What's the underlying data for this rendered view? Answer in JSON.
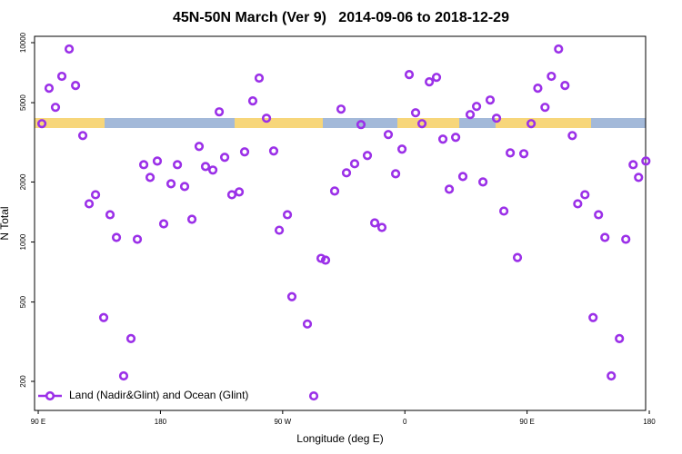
{
  "chart_data": {
    "type": "scatter",
    "title": "45N-50N March (Ver 9)   2014-09-06 to 2018-12-29",
    "xlabel": "Longitude (deg E)",
    "ylabel": "N Total",
    "log_y": true,
    "legend": "bottom-left",
    "xlim": [
      87.3,
      537.3
    ],
    "xticks": [
      {
        "value": 90,
        "label": "90 E"
      },
      {
        "value": 180,
        "label": "180"
      },
      {
        "value": 270,
        "label": "90 W"
      },
      {
        "value": 360,
        "label": "0"
      },
      {
        "value": 450,
        "label": "90 E"
      },
      {
        "value": 540,
        "label": "180"
      }
    ],
    "ylim": [
      143,
      10760
    ],
    "yticks": [
      200,
      500,
      1000,
      2000,
      5000,
      10000
    ],
    "series": [
      {
        "name": "Land (Nadir&Glint) and Ocean (Glint)",
        "color": "#9b30e8",
        "x": [
          92.7,
          98,
          102.7,
          107.4,
          112.8,
          117.5,
          122.8,
          127.5,
          132.2,
          138.2,
          142.9,
          147.6,
          152.9,
          158.3,
          163,
          167.7,
          172.4,
          177.7,
          182.4,
          187.8,
          192.5,
          197.8,
          203.2,
          208.5,
          213.2,
          218.6,
          223.3,
          227.3,
          232.6,
          238,
          242,
          248,
          252.7,
          258.1,
          263.4,
          267.5,
          273.5,
          276.8,
          288.2,
          292.9,
          298.3,
          301.6,
          308.3,
          313,
          317,
          323,
          327.7,
          332.4,
          337.8,
          343.1,
          347.8,
          353.2,
          357.9,
          363.2,
          367.9,
          372.6,
          378,
          383.3,
          388,
          392.7,
          397.4,
          402.7,
          408.1,
          412.8,
          417.5,
          422.8,
          427.5,
          432.9,
          437.6,
          442.9,
          447.6,
          453,
          457.9,
          463.2,
          467.9,
          473.2,
          477.9,
          483.3,
          487.3,
          492.6,
          498.6,
          502.6,
          507.3,
          512,
          518,
          522.7,
          528.1,
          532.1,
          537.5
        ],
        "values": [
          3924,
          5910,
          4740,
          6780,
          9290,
          6100,
          3420,
          1555,
          1727,
          418,
          1371,
          1054,
          213,
          328,
          1032,
          2444,
          2109,
          2548,
          1234,
          1960,
          2444,
          1900,
          1300,
          3016,
          2393,
          2296,
          4498,
          2660,
          1727,
          1783,
          2833,
          5103,
          6640,
          4178,
          2862,
          1146,
          1371,
          532,
          388,
          169,
          828,
          811,
          1803,
          4642,
          2224,
          2470,
          3882,
          2716,
          1247,
          1183,
          3460,
          2200,
          2924,
          6920,
          4450,
          3924,
          6360,
          6700,
          3280,
          1840,
          3350,
          2132,
          4358,
          4790,
          2002,
          5155,
          4178,
          1430,
          2800,
          836,
          2773,
          3924,
          5910,
          4740,
          6780,
          9290,
          6100,
          3420,
          1555,
          1727,
          418,
          1371,
          1054,
          213,
          328,
          1032,
          2444,
          2109,
          2548
        ]
      }
    ]
  }
}
